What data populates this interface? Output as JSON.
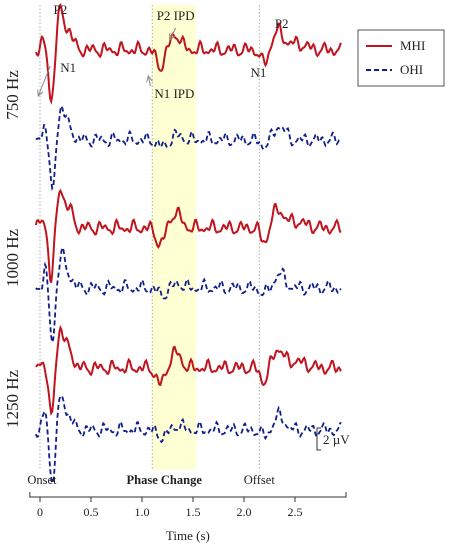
{
  "chart_data": {
    "type": "line",
    "xlabel": "Time (s)",
    "xlim": [
      -0.1,
      3.0
    ],
    "x_ticks": [
      "0",
      "0.5",
      "1.0",
      "1.5",
      "2.0",
      "2.5"
    ],
    "x_tick_values": [
      0,
      0.5,
      1.0,
      1.5,
      2.0,
      2.5
    ],
    "highlight_region": [
      1.1,
      1.53
    ],
    "events": [
      {
        "label": "Onset",
        "x": 0.0,
        "bold": false
      },
      {
        "label": "Phase Change",
        "x": 1.1,
        "bold": true
      },
      {
        "label": "Offset",
        "x": 2.15,
        "bold": false
      }
    ],
    "scale_bar": {
      "label": "2 µV",
      "value_uv": 2
    },
    "legend": {
      "position": "top-right",
      "entries": [
        {
          "name": "MHI",
          "color": "#c0141e",
          "style": "solid"
        },
        {
          "name": "OHI",
          "color": "#0f1f8a",
          "style": "dashed"
        }
      ]
    },
    "panels": [
      {
        "label": "750 Hz",
        "series": [
          {
            "name": "MHI"
          },
          {
            "name": "OHI"
          }
        ]
      },
      {
        "label": "1000 Hz",
        "series": [
          {
            "name": "MHI"
          },
          {
            "name": "OHI"
          }
        ]
      },
      {
        "label": "1250 Hz",
        "series": [
          {
            "name": "MHI"
          },
          {
            "name": "OHI"
          }
        ]
      }
    ],
    "annotations": [
      {
        "text": "P2",
        "x": 0.2,
        "panel": 0,
        "series": "MHI"
      },
      {
        "text": "N1",
        "x": 0.12,
        "panel": 0,
        "series": "MHI"
      },
      {
        "text": "P2 IPD",
        "x": 1.33,
        "panel": 0,
        "series": "MHI"
      },
      {
        "text": "N1 IPD",
        "x": 1.18,
        "panel": 0,
        "series": "MHI"
      },
      {
        "text": "P2",
        "x": 2.35,
        "panel": 0,
        "series": "MHI"
      },
      {
        "text": "N1",
        "x": 2.2,
        "panel": 0,
        "series": "MHI"
      }
    ]
  }
}
